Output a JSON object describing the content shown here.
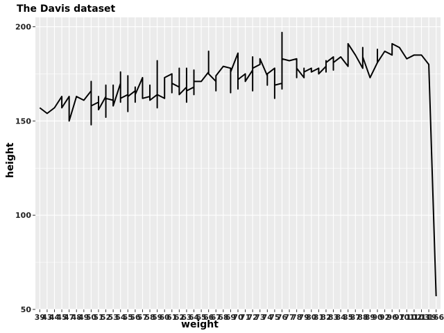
{
  "chart_data": {
    "type": "line",
    "title": "The Davis dataset",
    "xlabel": "weight",
    "ylabel": "height",
    "ylim": [
      50,
      205
    ],
    "yticks": [
      50,
      100,
      150,
      200
    ],
    "x_axis_kind": "discrete",
    "grid": true,
    "panel_background": "#ebebeb",
    "grid_color": "#ffffff",
    "line_color": "#000000",
    "categories": [
      "39",
      "43",
      "44",
      "45",
      "47",
      "48",
      "49",
      "50",
      "51",
      "52",
      "53",
      "54",
      "55",
      "56",
      "57",
      "58",
      "59",
      "60",
      "61",
      "62",
      "63",
      "64",
      "65",
      "66",
      "67",
      "68",
      "69",
      "70",
      "71",
      "72",
      "73",
      "74",
      "75",
      "76",
      "77",
      "78",
      "79",
      "80",
      "81",
      "82",
      "83",
      "84",
      "85",
      "87",
      "88",
      "89",
      "90",
      "92",
      "96",
      "97",
      "101",
      "102",
      "103",
      "119",
      "166"
    ],
    "series": [
      {
        "points": [
          [
            0,
            157
          ],
          [
            1,
            154
          ],
          [
            2,
            157
          ],
          [
            3,
            163
          ],
          [
            3,
            157
          ],
          [
            4,
            163
          ],
          [
            4,
            150
          ],
          [
            5,
            163
          ],
          [
            6,
            161
          ],
          [
            7,
            166
          ],
          [
            7,
            171
          ],
          [
            7,
            148
          ],
          [
            7,
            158
          ],
          [
            8,
            160
          ],
          [
            8,
            163
          ],
          [
            8,
            156
          ],
          [
            9,
            163
          ],
          [
            9,
            169
          ],
          [
            9,
            152
          ],
          [
            9,
            162
          ],
          [
            10,
            161
          ],
          [
            10,
            169
          ],
          [
            10,
            158
          ],
          [
            11,
            170
          ],
          [
            11,
            176
          ],
          [
            11,
            160
          ],
          [
            11,
            162
          ],
          [
            12,
            164
          ],
          [
            12,
            174
          ],
          [
            12,
            155
          ],
          [
            12,
            163
          ],
          [
            13,
            166
          ],
          [
            13,
            168
          ],
          [
            13,
            160
          ],
          [
            13,
            164
          ],
          [
            14,
            173
          ],
          [
            14,
            162
          ],
          [
            15,
            163
          ],
          [
            15,
            169
          ],
          [
            15,
            161
          ],
          [
            16,
            164
          ],
          [
            16,
            182
          ],
          [
            16,
            157
          ],
          [
            16,
            164
          ],
          [
            17,
            162
          ],
          [
            17,
            173
          ],
          [
            18,
            175
          ],
          [
            18,
            165
          ],
          [
            18,
            170
          ],
          [
            19,
            168
          ],
          [
            19,
            178
          ],
          [
            19,
            164
          ],
          [
            20,
            168
          ],
          [
            20,
            178
          ],
          [
            20,
            160
          ],
          [
            20,
            166
          ],
          [
            21,
            168
          ],
          [
            21,
            177
          ],
          [
            21,
            164
          ],
          [
            21,
            171
          ],
          [
            22,
            171
          ],
          [
            22,
            171
          ],
          [
            23,
            176
          ],
          [
            23,
            187
          ],
          [
            23,
            175
          ],
          [
            24,
            171
          ],
          [
            24,
            166
          ],
          [
            24,
            174
          ],
          [
            25,
            179
          ],
          [
            26,
            178
          ],
          [
            26,
            165
          ],
          [
            26,
            176
          ],
          [
            27,
            186
          ],
          [
            27,
            167
          ],
          [
            27,
            172
          ],
          [
            28,
            175
          ],
          [
            28,
            171
          ],
          [
            29,
            177
          ],
          [
            29,
            184
          ],
          [
            29,
            166
          ],
          [
            29,
            178
          ],
          [
            30,
            180
          ],
          [
            30,
            183
          ],
          [
            31,
            174
          ],
          [
            31,
            169
          ],
          [
            31,
            175
          ],
          [
            32,
            178
          ],
          [
            32,
            162
          ],
          [
            32,
            169
          ],
          [
            33,
            170
          ],
          [
            33,
            197
          ],
          [
            33,
            167
          ],
          [
            33,
            183
          ],
          [
            34,
            182
          ],
          [
            35,
            183
          ],
          [
            35,
            173
          ],
          [
            35,
            178
          ],
          [
            36,
            173
          ],
          [
            36,
            178
          ],
          [
            36,
            176
          ],
          [
            37,
            178
          ],
          [
            37,
            176
          ],
          [
            38,
            178
          ],
          [
            38,
            175
          ],
          [
            39,
            179
          ],
          [
            39,
            182
          ],
          [
            39,
            176
          ],
          [
            39,
            181
          ],
          [
            40,
            184
          ],
          [
            40,
            177
          ],
          [
            40,
            181
          ],
          [
            41,
            184
          ],
          [
            42,
            179
          ],
          [
            42,
            191
          ],
          [
            43,
            185
          ],
          [
            44,
            178
          ],
          [
            44,
            189
          ],
          [
            44,
            184
          ],
          [
            45,
            173
          ],
          [
            46,
            181
          ],
          [
            46,
            188
          ],
          [
            46,
            181
          ],
          [
            47,
            187
          ],
          [
            48,
            185
          ],
          [
            48,
            191
          ],
          [
            49,
            189
          ],
          [
            50,
            183
          ],
          [
            51,
            185
          ],
          [
            52,
            185
          ],
          [
            53,
            180
          ],
          [
            54,
            57
          ]
        ]
      }
    ]
  }
}
